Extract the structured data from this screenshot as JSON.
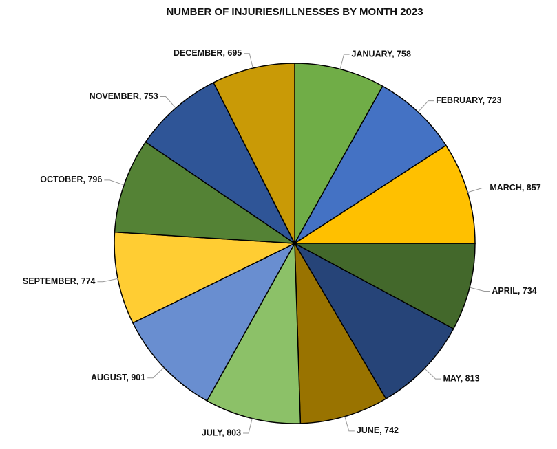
{
  "chart_data": {
    "type": "pie",
    "title": "NUMBER OF INJURIES/ILLNESSES BY MONTH 2023",
    "labels": [
      "JANUARY, 758",
      "FEBRUARY, 723",
      "MARCH, 857",
      "APRIL, 734",
      "MAY, 813",
      "JUNE, 742",
      "JULY, 803",
      "AUGUST, 901",
      "SEPTEMBER, 774",
      "OCTOBER, 796",
      "NOVEMBER, 753",
      "DECEMBER, 695"
    ],
    "values": [
      758,
      723,
      857,
      734,
      813,
      742,
      803,
      901,
      774,
      796,
      753,
      695
    ],
    "colors": [
      "#70ad47",
      "#4472c4",
      "#ffc000",
      "#43682b",
      "#264478",
      "#997300",
      "#8cc168",
      "#698ed0",
      "#ffcd33",
      "#548235",
      "#2f5597",
      "#c99a06"
    ]
  }
}
